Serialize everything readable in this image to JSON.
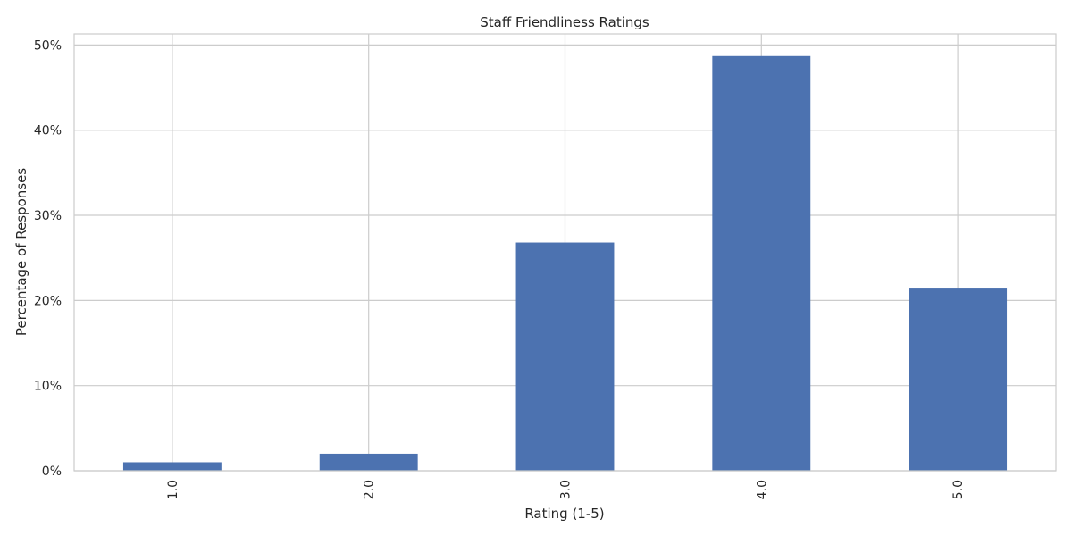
{
  "chart_data": {
    "type": "bar",
    "title": "Staff Friendliness Ratings",
    "xlabel": "Rating (1-5)",
    "ylabel": "Percentage of Responses",
    "categories": [
      "1.0",
      "2.0",
      "3.0",
      "4.0",
      "5.0"
    ],
    "values": [
      1.0,
      2.0,
      26.8,
      48.7,
      21.5
    ],
    "ylim": [
      0,
      51.3
    ],
    "yticks": [
      0,
      10,
      20,
      30,
      40,
      50
    ],
    "ytick_labels": [
      "0%",
      "10%",
      "20%",
      "30%",
      "40%",
      "50%"
    ],
    "grid": true,
    "bar_color": "#4c72b0"
  }
}
